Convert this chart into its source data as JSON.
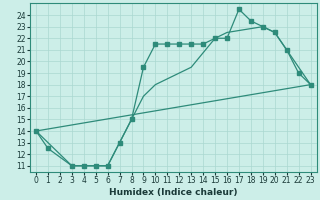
{
  "xlabel": "Humidex (Indice chaleur)",
  "series1_x": [
    0,
    1,
    3,
    4,
    5,
    6,
    7,
    8,
    9,
    10,
    11,
    12,
    13,
    14,
    15,
    16,
    17,
    18,
    19,
    20,
    21,
    22,
    23
  ],
  "series1_y": [
    14,
    12.5,
    11,
    11,
    11,
    11,
    13,
    15,
    19.5,
    21.5,
    21.5,
    21.5,
    21.5,
    21.5,
    22,
    22,
    24.5,
    23.5,
    23,
    22.5,
    21,
    19,
    18
  ],
  "series2_x": [
    0,
    3,
    4,
    5,
    6,
    7,
    8,
    9,
    10,
    11,
    12,
    13,
    15,
    16,
    19,
    20,
    23
  ],
  "series2_y": [
    14,
    11,
    11,
    11,
    11,
    13,
    15,
    17,
    18,
    18.5,
    19,
    19.5,
    22,
    22.5,
    23,
    22.5,
    18
  ],
  "series3_x": [
    0,
    23
  ],
  "series3_y": [
    14,
    18
  ],
  "xlim": [
    -0.5,
    23.5
  ],
  "ylim": [
    10.5,
    25.0
  ],
  "yticks": [
    11,
    12,
    13,
    14,
    15,
    16,
    17,
    18,
    19,
    20,
    21,
    22,
    23,
    24
  ],
  "xticks": [
    0,
    1,
    2,
    3,
    4,
    5,
    6,
    7,
    8,
    9,
    10,
    11,
    12,
    13,
    14,
    15,
    16,
    17,
    18,
    19,
    20,
    21,
    22,
    23
  ],
  "line_color": "#2e8b7a",
  "bg_color": "#cceee8",
  "grid_color": "#aad8d0",
  "tick_fontsize": 5.5,
  "xlabel_fontsize": 6.5
}
